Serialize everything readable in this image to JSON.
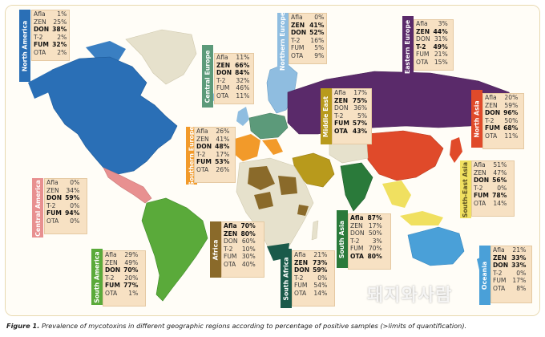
{
  "caption": {
    "label": "Figure 1.",
    "text": "Prevalence of mycotoxins in different geographic regions according to percentage of positive samples (>limits of quantification)."
  },
  "watermark": "돼지와사람",
  "regions": {
    "north_america": {
      "name": "North America",
      "color": "#2a6fb6",
      "rows": [
        [
          "Afla",
          "1%"
        ],
        [
          "ZEN",
          "25%"
        ],
        [
          "DON",
          "38%"
        ],
        [
          "T-2",
          "2%"
        ],
        [
          "FUM",
          "32%"
        ],
        [
          "OTA",
          "2%"
        ]
      ],
      "bold": [
        2,
        4
      ]
    },
    "central_europe": {
      "name": "Central Europe",
      "color": "#5c9a7a",
      "rows": [
        [
          "Afla",
          "11%"
        ],
        [
          "ZEN",
          "66%"
        ],
        [
          "DON",
          "84%"
        ],
        [
          "T-2",
          "32%"
        ],
        [
          "FUM",
          "46%"
        ],
        [
          "OTA",
          "11%"
        ]
      ],
      "bold": [
        1,
        2
      ]
    },
    "northern_europe": {
      "name": "Northern Europe",
      "color": "#8fbde0",
      "rows": [
        [
          "Afla",
          "0%"
        ],
        [
          "ZEN",
          "41%"
        ],
        [
          "DON",
          "52%"
        ],
        [
          "T-2",
          "16%"
        ],
        [
          "FUM",
          "5%"
        ],
        [
          "OTA",
          "9%"
        ]
      ],
      "bold": [
        1,
        2
      ]
    },
    "eastern_europe": {
      "name": "Eastern Europe",
      "color": "#5a2a6a",
      "rows": [
        [
          "Afla",
          "3%"
        ],
        [
          "ZEN",
          "44%"
        ],
        [
          "DON",
          "31%"
        ],
        [
          "T-2",
          "49%"
        ],
        [
          "FUM",
          "21%"
        ],
        [
          "OTA",
          "15%"
        ]
      ],
      "bold": [
        1,
        3
      ]
    },
    "middle_east": {
      "name": "Middle East",
      "color": "#b89a1c",
      "rows": [
        [
          "Afla",
          "17%"
        ],
        [
          "ZEN",
          "75%"
        ],
        [
          "DON",
          "36%"
        ],
        [
          "T-2",
          "5%"
        ],
        [
          "FUM",
          "57%"
        ],
        [
          "OTA",
          "43%"
        ]
      ],
      "bold": [
        1,
        4,
        5
      ]
    },
    "north_asia": {
      "name": "North Asia",
      "color": "#e04a2a",
      "rows": [
        [
          "Afla",
          "20%"
        ],
        [
          "ZEN",
          "59%"
        ],
        [
          "DON",
          "96%"
        ],
        [
          "T-2",
          "50%"
        ],
        [
          "FUM",
          "68%"
        ],
        [
          "OTA",
          "11%"
        ]
      ],
      "bold": [
        2,
        4
      ]
    },
    "southern_europe": {
      "name": "Southern Europe",
      "color": "#f29a2a",
      "rows": [
        [
          "Afla",
          "26%"
        ],
        [
          "ZEN",
          "41%"
        ],
        [
          "DON",
          "48%"
        ],
        [
          "T-2",
          "17%"
        ],
        [
          "FUM",
          "53%"
        ],
        [
          "OTA",
          "26%"
        ]
      ],
      "bold": [
        2,
        4
      ]
    },
    "central_america": {
      "name": "Central America",
      "color": "#e89090",
      "rows": [
        [
          "Afla",
          "0%"
        ],
        [
          "ZEN",
          "34%"
        ],
        [
          "DON",
          "59%"
        ],
        [
          "T-2",
          "0%"
        ],
        [
          "FUM",
          "94%"
        ],
        [
          "OTA",
          "0%"
        ]
      ],
      "bold": [
        2,
        4
      ]
    },
    "south_east_asia": {
      "name": "South-East Asia",
      "color": "#f0e060",
      "rows": [
        [
          "Afla",
          "51%"
        ],
        [
          "ZEN",
          "47%"
        ],
        [
          "DON",
          "56%"
        ],
        [
          "T-2",
          "0%"
        ],
        [
          "FUM",
          "78%"
        ],
        [
          "OTA",
          "14%"
        ]
      ],
      "bold": [
        2,
        4
      ]
    },
    "africa": {
      "name": "Africa",
      "color": "#8a6a2a",
      "rows": [
        [
          "Afla",
          "70%"
        ],
        [
          "ZEN",
          "80%"
        ],
        [
          "DON",
          "60%"
        ],
        [
          "T-2",
          "10%"
        ],
        [
          "FUM",
          "30%"
        ],
        [
          "OTA",
          "40%"
        ]
      ],
      "bold": [
        0,
        1
      ]
    },
    "south_asia": {
      "name": "South Asia",
      "color": "#2a7a3a",
      "rows": [
        [
          "Afla",
          "87%"
        ],
        [
          "ZEN",
          "17%"
        ],
        [
          "DON",
          "50%"
        ],
        [
          "T-2",
          "3%"
        ],
        [
          "FUM",
          "70%"
        ],
        [
          "OTA",
          "80%"
        ]
      ],
      "bold": [
        0,
        5
      ]
    },
    "south_america": {
      "name": "South America",
      "color": "#5aaa3a",
      "rows": [
        [
          "Afla",
          "29%"
        ],
        [
          "ZEN",
          "49%"
        ],
        [
          "DON",
          "70%"
        ],
        [
          "T-2",
          "20%"
        ],
        [
          "FUM",
          "77%"
        ],
        [
          "OTA",
          "1%"
        ]
      ],
      "bold": [
        2,
        4
      ]
    },
    "south_africa": {
      "name": "South Africa",
      "color": "#1a5a4a",
      "rows": [
        [
          "Afla",
          "21%"
        ],
        [
          "ZEN",
          "73%"
        ],
        [
          "DON",
          "59%"
        ],
        [
          "T-2",
          "0%"
        ],
        [
          "FUM",
          "54%"
        ],
        [
          "OTA",
          "14%"
        ]
      ],
      "bold": [
        1,
        2
      ]
    },
    "oceania": {
      "name": "Oceania",
      "color": "#4aa0d8",
      "rows": [
        [
          "Afla",
          "21%"
        ],
        [
          "ZEN",
          "33%"
        ],
        [
          "DON",
          "33%"
        ],
        [
          "T-2",
          "0%"
        ],
        [
          "FUM",
          "17%"
        ],
        [
          "OTA",
          "8%"
        ]
      ],
      "bold": [
        1,
        2
      ]
    }
  }
}
